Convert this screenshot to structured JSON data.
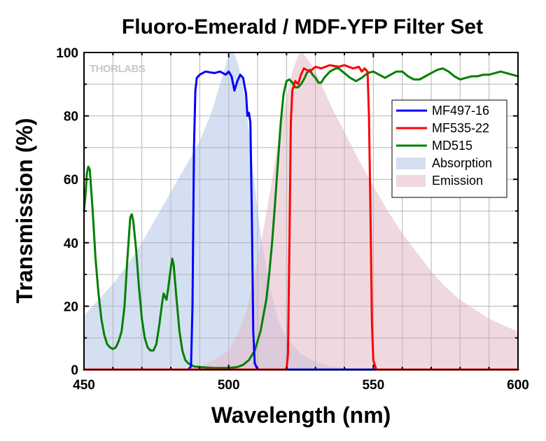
{
  "watermark": "THORLABS",
  "chart_data": {
    "type": "line",
    "title": "Fluoro-Emerald / MDF-YFP Filter Set",
    "xlabel": "Wavelength (nm)",
    "ylabel": "Transmission (%)",
    "xlim": [
      450,
      600
    ],
    "ylim": [
      0,
      100
    ],
    "x_ticks": [
      450,
      500,
      550,
      600
    ],
    "y_ticks": [
      0,
      20,
      40,
      60,
      80,
      100
    ],
    "grid": true,
    "legend_position": "right",
    "series": [
      {
        "name": "MF497-16",
        "kind": "line",
        "color": "#0000ff",
        "points": [
          [
            450,
            0
          ],
          [
            486,
            0
          ],
          [
            487,
            1
          ],
          [
            487.5,
            20
          ],
          [
            488,
            70
          ],
          [
            488.5,
            88
          ],
          [
            489,
            92
          ],
          [
            490,
            93
          ],
          [
            492,
            94
          ],
          [
            495,
            93.5
          ],
          [
            497,
            94
          ],
          [
            499,
            93
          ],
          [
            500,
            94
          ],
          [
            501,
            92.5
          ],
          [
            502,
            88
          ],
          [
            503,
            91
          ],
          [
            504,
            93
          ],
          [
            505,
            92
          ],
          [
            506,
            87
          ],
          [
            506.5,
            80
          ],
          [
            507,
            81
          ],
          [
            507.5,
            78
          ],
          [
            508,
            50
          ],
          [
            508.5,
            12
          ],
          [
            509,
            2
          ],
          [
            510,
            0
          ],
          [
            600,
            0
          ]
        ]
      },
      {
        "name": "MF535-22",
        "kind": "line",
        "color": "#ff0000",
        "points": [
          [
            450,
            0
          ],
          [
            520,
            0
          ],
          [
            520.5,
            5
          ],
          [
            521,
            40
          ],
          [
            521.5,
            78
          ],
          [
            522,
            88
          ],
          [
            523,
            91
          ],
          [
            524,
            90
          ],
          [
            525,
            93
          ],
          [
            526,
            95
          ],
          [
            528,
            94
          ],
          [
            530,
            95.5
          ],
          [
            532,
            95
          ],
          [
            535,
            96
          ],
          [
            538,
            95.5
          ],
          [
            540,
            96
          ],
          [
            543,
            95
          ],
          [
            545,
            95.5
          ],
          [
            546,
            94
          ],
          [
            547,
            95
          ],
          [
            548,
            94
          ],
          [
            548.5,
            80
          ],
          [
            549,
            50
          ],
          [
            549.5,
            15
          ],
          [
            550,
            3
          ],
          [
            551,
            0
          ],
          [
            600,
            0
          ]
        ]
      },
      {
        "name": "MD515",
        "kind": "line",
        "color": "#008000",
        "points": [
          [
            450,
            50
          ],
          [
            450.5,
            55
          ],
          [
            451,
            62
          ],
          [
            451.5,
            64
          ],
          [
            452,
            63
          ],
          [
            453,
            50
          ],
          [
            454,
            35
          ],
          [
            455,
            24
          ],
          [
            456,
            16
          ],
          [
            457,
            11
          ],
          [
            458,
            8
          ],
          [
            459,
            7
          ],
          [
            460,
            6.5
          ],
          [
            461,
            7
          ],
          [
            462,
            9
          ],
          [
            463,
            12
          ],
          [
            464,
            20
          ],
          [
            465,
            35
          ],
          [
            466,
            48
          ],
          [
            466.5,
            49
          ],
          [
            467,
            47
          ],
          [
            468,
            38
          ],
          [
            469,
            26
          ],
          [
            470,
            16
          ],
          [
            471,
            10
          ],
          [
            472,
            7
          ],
          [
            473,
            6
          ],
          [
            474,
            6
          ],
          [
            475,
            8
          ],
          [
            476,
            14
          ],
          [
            477,
            21
          ],
          [
            477.5,
            24
          ],
          [
            478,
            23
          ],
          [
            478.5,
            22
          ],
          [
            479,
            25
          ],
          [
            480,
            32
          ],
          [
            480.5,
            35
          ],
          [
            481,
            33
          ],
          [
            482,
            22
          ],
          [
            483,
            12
          ],
          [
            484,
            6
          ],
          [
            485,
            3
          ],
          [
            486,
            2
          ],
          [
            488,
            1
          ],
          [
            490,
            0.8
          ],
          [
            495,
            0.5
          ],
          [
            500,
            0.5
          ],
          [
            503,
            0.8
          ],
          [
            505,
            1.5
          ],
          [
            507,
            3
          ],
          [
            509,
            6
          ],
          [
            511,
            12
          ],
          [
            513,
            22
          ],
          [
            514,
            30
          ],
          [
            515,
            40
          ],
          [
            516,
            52
          ],
          [
            517,
            65
          ],
          [
            518,
            78
          ],
          [
            519,
            87
          ],
          [
            520,
            91
          ],
          [
            521,
            91.5
          ],
          [
            522,
            90.5
          ],
          [
            523,
            89
          ],
          [
            524,
            89
          ],
          [
            525,
            90
          ],
          [
            526,
            91.5
          ],
          [
            527,
            93.5
          ],
          [
            528,
            94.5
          ],
          [
            529,
            93
          ],
          [
            530,
            92
          ],
          [
            531,
            90.5
          ],
          [
            532,
            90.5
          ],
          [
            533,
            92
          ],
          [
            535,
            94
          ],
          [
            537,
            95
          ],
          [
            538,
            95
          ],
          [
            540,
            93.5
          ],
          [
            542,
            92
          ],
          [
            544,
            91
          ],
          [
            546,
            92
          ],
          [
            548,
            93.5
          ],
          [
            550,
            94
          ],
          [
            552,
            93
          ],
          [
            554,
            92
          ],
          [
            556,
            93
          ],
          [
            558,
            94
          ],
          [
            560,
            94
          ],
          [
            562,
            92.5
          ],
          [
            564,
            91.5
          ],
          [
            566,
            91.5
          ],
          [
            568,
            92.5
          ],
          [
            570,
            93.5
          ],
          [
            572,
            94.5
          ],
          [
            574,
            95
          ],
          [
            576,
            94
          ],
          [
            578,
            92.5
          ],
          [
            580,
            91.5
          ],
          [
            582,
            92
          ],
          [
            584,
            92.5
          ],
          [
            586,
            92.5
          ],
          [
            588,
            93
          ],
          [
            590,
            93
          ],
          [
            592,
            93.5
          ],
          [
            594,
            94
          ],
          [
            596,
            93.5
          ],
          [
            598,
            93
          ],
          [
            600,
            92.5
          ]
        ]
      },
      {
        "name": "Absorption",
        "kind": "area",
        "color": "#b0c4e8",
        "points": [
          [
            450,
            17
          ],
          [
            455,
            22
          ],
          [
            460,
            27
          ],
          [
            465,
            33
          ],
          [
            470,
            40
          ],
          [
            475,
            48
          ],
          [
            480,
            56
          ],
          [
            485,
            64
          ],
          [
            490,
            72
          ],
          [
            494,
            81
          ],
          [
            497,
            90
          ],
          [
            499,
            96
          ],
          [
            500,
            99
          ],
          [
            501,
            100
          ],
          [
            502,
            99.5
          ],
          [
            503,
            97
          ],
          [
            505,
            90
          ],
          [
            507,
            75
          ],
          [
            509,
            58
          ],
          [
            511,
            43
          ],
          [
            513,
            32
          ],
          [
            515,
            23
          ],
          [
            517,
            16
          ],
          [
            520,
            10
          ],
          [
            525,
            5
          ],
          [
            530,
            2.5
          ],
          [
            535,
            1
          ],
          [
            540,
            0.5
          ],
          [
            545,
            0.2
          ],
          [
            550,
            0
          ],
          [
            600,
            0
          ]
        ]
      },
      {
        "name": "Emission",
        "kind": "area",
        "color": "#e3b8c8",
        "points": [
          [
            450,
            0
          ],
          [
            485,
            0
          ],
          [
            490,
            1
          ],
          [
            495,
            3
          ],
          [
            500,
            6
          ],
          [
            503,
            11
          ],
          [
            506,
            18
          ],
          [
            509,
            30
          ],
          [
            512,
            44
          ],
          [
            515,
            60
          ],
          [
            518,
            77
          ],
          [
            520,
            86
          ],
          [
            522,
            94
          ],
          [
            524,
            99
          ],
          [
            525,
            100
          ],
          [
            526,
            99.5
          ],
          [
            528,
            97
          ],
          [
            530,
            94
          ],
          [
            533,
            88
          ],
          [
            536,
            82
          ],
          [
            540,
            75
          ],
          [
            545,
            66
          ],
          [
            550,
            58
          ],
          [
            555,
            50
          ],
          [
            560,
            43
          ],
          [
            565,
            37
          ],
          [
            570,
            31
          ],
          [
            575,
            26
          ],
          [
            580,
            22
          ],
          [
            585,
            19
          ],
          [
            590,
            16
          ],
          [
            595,
            14
          ],
          [
            600,
            12
          ]
        ]
      }
    ]
  }
}
